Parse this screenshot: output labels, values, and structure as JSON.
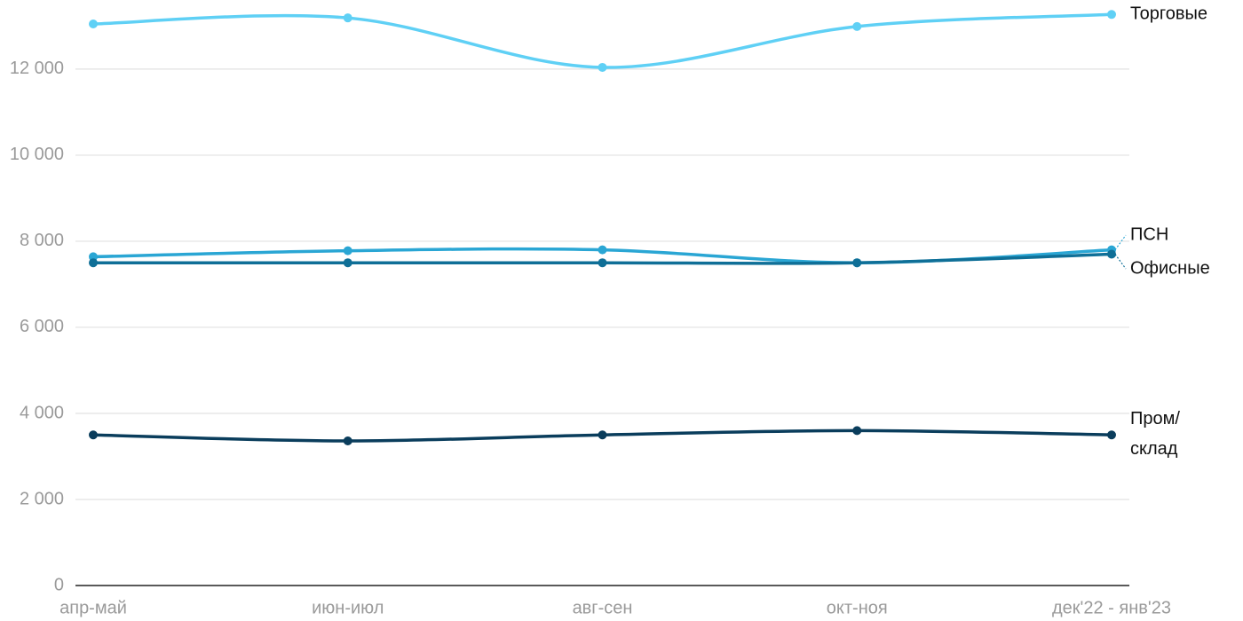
{
  "chart_data": {
    "type": "line",
    "categories": [
      "апр-май",
      "июн-июл",
      "авг-сен",
      "окт-ноя",
      "дек'22 - янв'23"
    ],
    "series": [
      {
        "name": "Торговые",
        "color": "#5fd0f5",
        "values": [
          13050,
          13190,
          12040,
          12990,
          13270
        ]
      },
      {
        "name": "ПСН",
        "color": "#2aa6d4",
        "values": [
          7640,
          7780,
          7800,
          7500,
          7800
        ]
      },
      {
        "name": "Офисные",
        "color": "#0f6f97",
        "values": [
          7500,
          7500,
          7500,
          7500,
          7700
        ]
      },
      {
        "name": "Пром/склад",
        "color": "#0a3d5c",
        "values": [
          3500,
          3360,
          3500,
          3600,
          3500
        ]
      }
    ],
    "ylim": [
      0,
      13400
    ],
    "yticks": [
      0,
      {
        "value": 2000,
        "label": "2 000"
      },
      {
        "value": 4000,
        "label": "4 000"
      },
      {
        "value": 6000,
        "label": "6 000"
      },
      {
        "value": 8000,
        "label": "8 000"
      },
      {
        "value": 10000,
        "label": "10 000"
      },
      {
        "value": 12000,
        "label": "12 000"
      }
    ],
    "grid": true
  }
}
